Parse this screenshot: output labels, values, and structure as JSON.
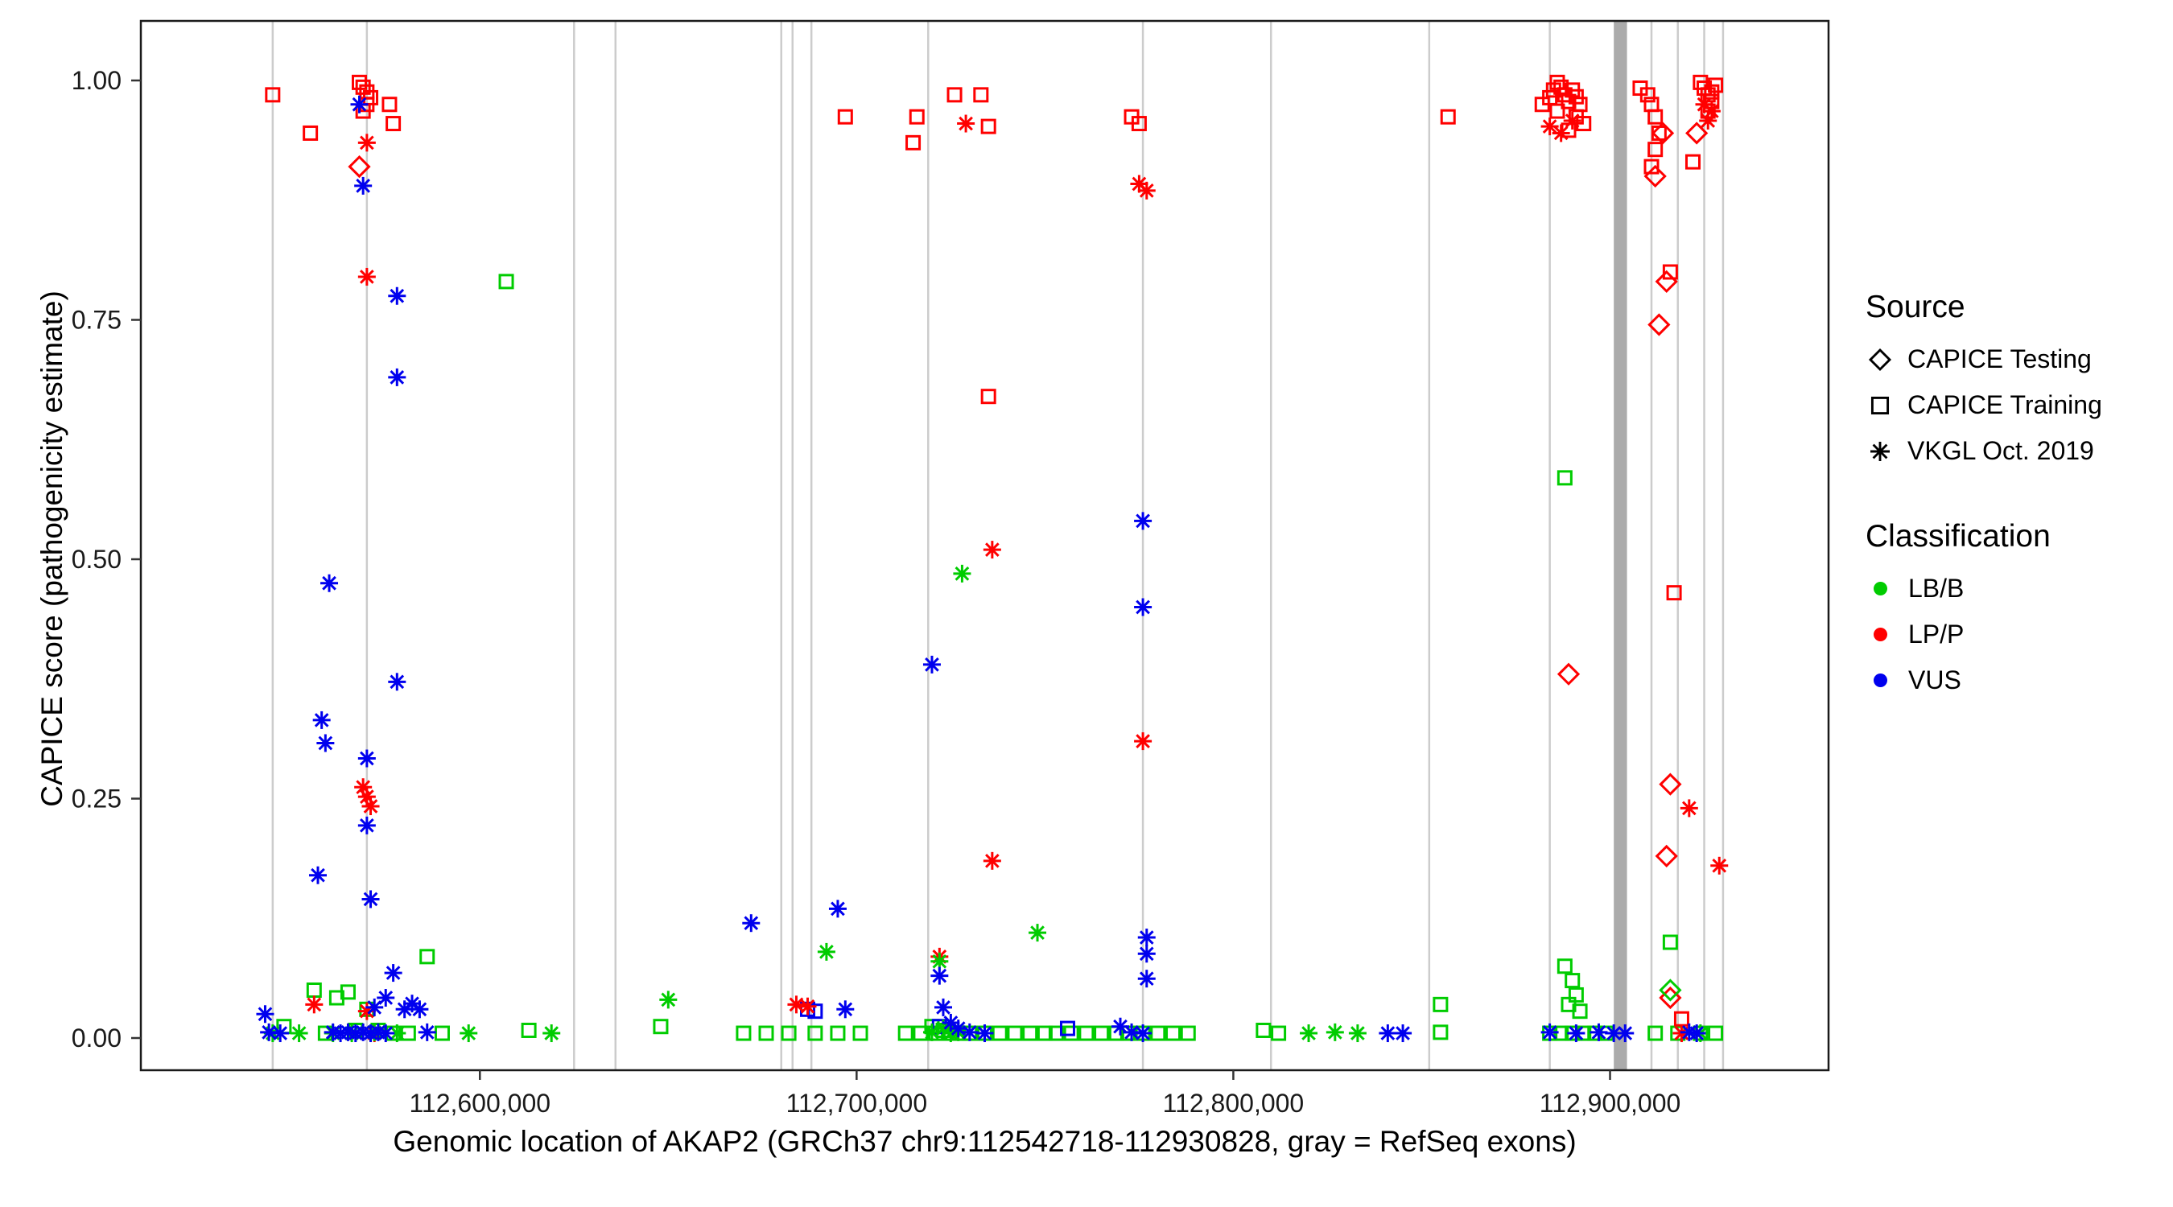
{
  "legend": {
    "source_title": "Source",
    "source_items": [
      {
        "label": "CAPICE Testing",
        "shape": "diamond"
      },
      {
        "label": "CAPICE Training",
        "shape": "square"
      },
      {
        "label": "VKGL Oct. 2019",
        "shape": "asterisk"
      }
    ],
    "classification_title": "Classification",
    "classification_items": [
      {
        "label": "LB/B",
        "color": "#00CC00"
      },
      {
        "label": "LP/P",
        "color": "#FF0000"
      },
      {
        "label": "VUS",
        "color": "#0000EE"
      }
    ]
  },
  "chart_data": {
    "type": "scatter",
    "title": "",
    "xlabel": "Genomic location of AKAP2 (GRCh37 chr9:112542718-112930828, gray = RefSeq exons)",
    "ylabel": "CAPICE score (pathogenicity estimate)",
    "xlim": [
      112510000,
      112958000
    ],
    "ylim": [
      0,
      1
    ],
    "grid": false,
    "legend_position": "right",
    "x_ticks": [
      {
        "value": 112600000,
        "label": "112,600,000"
      },
      {
        "value": 112700000,
        "label": "112,700,000"
      },
      {
        "value": 112800000,
        "label": "112,800,000"
      },
      {
        "value": 112900000,
        "label": "112,900,000"
      }
    ],
    "y_ticks": [
      {
        "value": 0.0,
        "label": "0.00"
      },
      {
        "value": 0.25,
        "label": "0.25"
      },
      {
        "value": 0.5,
        "label": "0.50"
      },
      {
        "value": 0.75,
        "label": "0.75"
      },
      {
        "value": 1.0,
        "label": "1.00"
      }
    ],
    "exons": {
      "thin": [
        112545000,
        112570000,
        112625000,
        112636000,
        112680000,
        112683000,
        112688000,
        112719000,
        112776000,
        112810000,
        112852000,
        112884000,
        112911000,
        112918000,
        112925000,
        112930000
      ],
      "thick": [
        {
          "start": 112901000,
          "end": 112904500
        }
      ]
    },
    "series": [
      {
        "name": "CAPICE Training / LB-B",
        "source": "CAPICE Training",
        "classification": "LB/B",
        "shape": "square",
        "color": "#00CC00",
        "points": [
          [
            112548000,
            0.012
          ],
          [
            112556000,
            0.05
          ],
          [
            112559000,
            0.005
          ],
          [
            112562000,
            0.042
          ],
          [
            112565000,
            0.048
          ],
          [
            112567000,
            0.008
          ],
          [
            112570000,
            0.03
          ],
          [
            112573000,
            0.008
          ],
          [
            112577000,
            0.005
          ],
          [
            112581000,
            0.005
          ],
          [
            112586000,
            0.085
          ],
          [
            112590000,
            0.005
          ],
          [
            112607000,
            0.79
          ],
          [
            112613000,
            0.008
          ],
          [
            112648000,
            0.012
          ],
          [
            112670000,
            0.005
          ],
          [
            112676000,
            0.005
          ],
          [
            112682000,
            0.005
          ],
          [
            112689000,
            0.005
          ],
          [
            112695000,
            0.005
          ],
          [
            112701000,
            0.005
          ],
          [
            112713000,
            0.005
          ],
          [
            112717000,
            0.005
          ],
          [
            112720000,
            0.012
          ],
          [
            112721000,
            0.005
          ],
          [
            112723000,
            0.008
          ],
          [
            112725000,
            0.005
          ],
          [
            112727000,
            0.005
          ],
          [
            112730000,
            0.005
          ],
          [
            112734000,
            0.005
          ],
          [
            112738000,
            0.005
          ],
          [
            112742000,
            0.005
          ],
          [
            112746000,
            0.005
          ],
          [
            112750000,
            0.005
          ],
          [
            112753000,
            0.005
          ],
          [
            112757000,
            0.005
          ],
          [
            112761000,
            0.005
          ],
          [
            112765000,
            0.005
          ],
          [
            112769000,
            0.005
          ],
          [
            112772000,
            0.005
          ],
          [
            112776000,
            0.005
          ],
          [
            112780000,
            0.005
          ],
          [
            112784000,
            0.005
          ],
          [
            112788000,
            0.005
          ],
          [
            112808000,
            0.008
          ],
          [
            112812000,
            0.005
          ],
          [
            112855000,
            0.035
          ],
          [
            112855000,
            0.006
          ],
          [
            112888000,
            0.585
          ],
          [
            112888000,
            0.075
          ],
          [
            112890000,
            0.06
          ],
          [
            112891000,
            0.045
          ],
          [
            112889000,
            0.035
          ],
          [
            112892000,
            0.028
          ],
          [
            112884000,
            0.005
          ],
          [
            112887000,
            0.005
          ],
          [
            112890000,
            0.005
          ],
          [
            112893000,
            0.005
          ],
          [
            112896000,
            0.005
          ],
          [
            112899000,
            0.005
          ],
          [
            112916000,
            0.1
          ],
          [
            112912000,
            0.005
          ],
          [
            112918000,
            0.005
          ],
          [
            112924000,
            0.005
          ],
          [
            112928000,
            0.005
          ]
        ]
      },
      {
        "name": "CAPICE Training / LP-P",
        "source": "CAPICE Training",
        "classification": "LP/P",
        "shape": "square",
        "color": "#FF0000",
        "points": [
          [
            112545000,
            0.985
          ],
          [
            112555000,
            0.945
          ],
          [
            112568000,
            0.998
          ],
          [
            112569000,
            0.993
          ],
          [
            112570000,
            0.988
          ],
          [
            112571000,
            0.982
          ],
          [
            112570000,
            0.975
          ],
          [
            112569000,
            0.968
          ],
          [
            112576000,
            0.975
          ],
          [
            112577000,
            0.955
          ],
          [
            112697000,
            0.962
          ],
          [
            112716000,
            0.962
          ],
          [
            112715000,
            0.935
          ],
          [
            112726000,
            0.985
          ],
          [
            112733000,
            0.985
          ],
          [
            112735000,
            0.952
          ],
          [
            112735000,
            0.67
          ],
          [
            112773000,
            0.962
          ],
          [
            112775000,
            0.955
          ],
          [
            112857000,
            0.962
          ],
          [
            112882000,
            0.975
          ],
          [
            112884000,
            0.982
          ],
          [
            112885000,
            0.99
          ],
          [
            112886000,
            0.998
          ],
          [
            112887000,
            0.993
          ],
          [
            112888000,
            0.985
          ],
          [
            112889000,
            0.978
          ],
          [
            112890000,
            0.99
          ],
          [
            112891000,
            0.983
          ],
          [
            112892000,
            0.975
          ],
          [
            112893000,
            0.955
          ],
          [
            112886000,
            0.968
          ],
          [
            112891000,
            0.962
          ],
          [
            112889000,
            0.948
          ],
          [
            112908000,
            0.992
          ],
          [
            112910000,
            0.985
          ],
          [
            112911000,
            0.975
          ],
          [
            112912000,
            0.962
          ],
          [
            112913000,
            0.945
          ],
          [
            112912000,
            0.928
          ],
          [
            112911000,
            0.91
          ],
          [
            112916000,
            0.8
          ],
          [
            112917000,
            0.465
          ],
          [
            112922000,
            0.915
          ],
          [
            112924000,
            0.998
          ],
          [
            112925000,
            0.992
          ],
          [
            112926000,
            0.985
          ],
          [
            112927000,
            0.978
          ],
          [
            112926000,
            0.968
          ],
          [
            112928000,
            0.995
          ],
          [
            112927000,
            0.988
          ],
          [
            112919000,
            0.02
          ]
        ]
      },
      {
        "name": "CAPICE Training / VUS",
        "source": "CAPICE Training",
        "classification": "VUS",
        "shape": "square",
        "color": "#0000EE",
        "points": [
          [
            112687000,
            0.03
          ],
          [
            112689000,
            0.028
          ],
          [
            112722000,
            0.012
          ],
          [
            112756000,
            0.01
          ]
        ]
      },
      {
        "name": "CAPICE Testing / LP-P",
        "source": "CAPICE Testing",
        "classification": "LP/P",
        "shape": "diamond",
        "color": "#FF0000",
        "points": [
          [
            112568000,
            0.91
          ],
          [
            112889000,
            0.38
          ],
          [
            112914000,
            0.945
          ],
          [
            112912000,
            0.9
          ],
          [
            112915000,
            0.79
          ],
          [
            112913000,
            0.745
          ],
          [
            112916000,
            0.265
          ],
          [
            112915000,
            0.19
          ],
          [
            112923000,
            0.945
          ],
          [
            112916000,
            0.042
          ]
        ]
      },
      {
        "name": "CAPICE Testing / LB-B",
        "source": "CAPICE Testing",
        "classification": "LB/B",
        "shape": "diamond",
        "color": "#00CC00",
        "points": [
          [
            112916000,
            0.05
          ]
        ]
      },
      {
        "name": "VKGL Oct. 2019 / LP-P",
        "source": "VKGL Oct. 2019",
        "classification": "LP/P",
        "shape": "asterisk",
        "color": "#FF0000",
        "points": [
          [
            112570000,
            0.935
          ],
          [
            112570000,
            0.795
          ],
          [
            112569000,
            0.262
          ],
          [
            112570000,
            0.252
          ],
          [
            112571000,
            0.242
          ],
          [
            112556000,
            0.035
          ],
          [
            112570000,
            0.028
          ],
          [
            112572000,
            0.005
          ],
          [
            112684000,
            0.035
          ],
          [
            112687000,
            0.033
          ],
          [
            112729000,
            0.955
          ],
          [
            112736000,
            0.51
          ],
          [
            112736000,
            0.185
          ],
          [
            112722000,
            0.085
          ],
          [
            112775000,
            0.892
          ],
          [
            112777000,
            0.885
          ],
          [
            112776000,
            0.31
          ],
          [
            112884000,
            0.952
          ],
          [
            112887000,
            0.945
          ],
          [
            112890000,
            0.958
          ],
          [
            112919000,
            0.005
          ],
          [
            112921000,
            0.24
          ],
          [
            112929000,
            0.18
          ],
          [
            112925000,
            0.975
          ],
          [
            112927000,
            0.968
          ],
          [
            112926000,
            0.958
          ]
        ]
      },
      {
        "name": "VKGL Oct. 2019 / LB-B",
        "source": "VKGL Oct. 2019",
        "classification": "LB/B",
        "shape": "asterisk",
        "color": "#00CC00",
        "points": [
          [
            112545000,
            0.005
          ],
          [
            112552000,
            0.005
          ],
          [
            112561000,
            0.005
          ],
          [
            112566000,
            0.005
          ],
          [
            112572000,
            0.006
          ],
          [
            112578000,
            0.005
          ],
          [
            112597000,
            0.005
          ],
          [
            112619000,
            0.005
          ],
          [
            112650000,
            0.04
          ],
          [
            112692000,
            0.09
          ],
          [
            112722000,
            0.08
          ],
          [
            112728000,
            0.485
          ],
          [
            112720000,
            0.006
          ],
          [
            112723000,
            0.01
          ],
          [
            112725000,
            0.005
          ],
          [
            112727000,
            0.006
          ],
          [
            112748000,
            0.11
          ],
          [
            112820000,
            0.005
          ],
          [
            112827000,
            0.006
          ],
          [
            112833000,
            0.005
          ],
          [
            112924000,
            0.005
          ]
        ]
      },
      {
        "name": "VKGL Oct. 2019 / VUS",
        "source": "VKGL Oct. 2019",
        "classification": "VUS",
        "shape": "asterisk",
        "color": "#0000EE",
        "points": [
          [
            112543000,
            0.025
          ],
          [
            112544000,
            0.006
          ],
          [
            112547000,
            0.005
          ],
          [
            112557000,
            0.17
          ],
          [
            112558000,
            0.332
          ],
          [
            112559000,
            0.308
          ],
          [
            112560000,
            0.475
          ],
          [
            112568000,
            0.975
          ],
          [
            112569000,
            0.89
          ],
          [
            112570000,
            0.292
          ],
          [
            112570000,
            0.222
          ],
          [
            112571000,
            0.145
          ],
          [
            112578000,
            0.775
          ],
          [
            112578000,
            0.69
          ],
          [
            112578000,
            0.372
          ],
          [
            112577000,
            0.068
          ],
          [
            112575000,
            0.042
          ],
          [
            112572000,
            0.032
          ],
          [
            112580000,
            0.03
          ],
          [
            112582000,
            0.036
          ],
          [
            112584000,
            0.03
          ],
          [
            112586000,
            0.006
          ],
          [
            112561000,
            0.006
          ],
          [
            112563000,
            0.005
          ],
          [
            112565000,
            0.006
          ],
          [
            112567000,
            0.005
          ],
          [
            112569000,
            0.006
          ],
          [
            112571000,
            0.005
          ],
          [
            112573000,
            0.006
          ],
          [
            112575000,
            0.005
          ],
          [
            112672000,
            0.12
          ],
          [
            112695000,
            0.135
          ],
          [
            112697000,
            0.03
          ],
          [
            112720000,
            0.39
          ],
          [
            112722000,
            0.065
          ],
          [
            112723000,
            0.032
          ],
          [
            112725000,
            0.016
          ],
          [
            112727000,
            0.01
          ],
          [
            112730000,
            0.006
          ],
          [
            112734000,
            0.005
          ],
          [
            112770000,
            0.012
          ],
          [
            112773000,
            0.006
          ],
          [
            112776000,
            0.005
          ],
          [
            112776000,
            0.54
          ],
          [
            112776000,
            0.45
          ],
          [
            112777000,
            0.105
          ],
          [
            112777000,
            0.088
          ],
          [
            112777000,
            0.062
          ],
          [
            112841000,
            0.005
          ],
          [
            112845000,
            0.005
          ],
          [
            112884000,
            0.006
          ],
          [
            112891000,
            0.005
          ],
          [
            112897000,
            0.006
          ],
          [
            112901000,
            0.005
          ],
          [
            112904000,
            0.005
          ],
          [
            112921000,
            0.006
          ],
          [
            112923000,
            0.005
          ]
        ]
      }
    ]
  }
}
